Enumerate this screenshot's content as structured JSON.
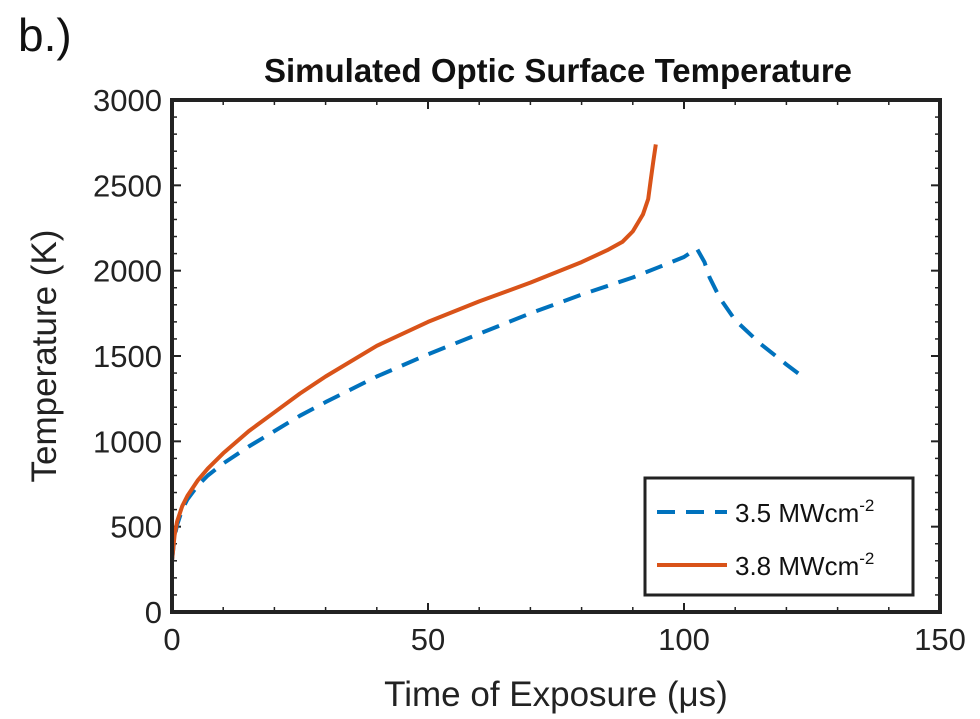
{
  "panel_label": "b.)",
  "chart_data": {
    "type": "line",
    "title": "Simulated Optic Surface Temperature",
    "xlabel": "Time of Exposure (μs)",
    "ylabel": "Temperature (K)",
    "xlim": [
      0,
      150
    ],
    "ylim": [
      0,
      3000
    ],
    "xticks": [
      0,
      50,
      100,
      150
    ],
    "yticks": [
      0,
      500,
      1000,
      1500,
      2000,
      2500,
      3000
    ],
    "grid": false,
    "legend_position": "bottom-right",
    "series": [
      {
        "name": "3.5 MWcm",
        "name_sup": "-2",
        "color": "#0072BD",
        "style": "dashed",
        "x": [
          0,
          0.5,
          1,
          2,
          3,
          5,
          7,
          10,
          15,
          20,
          25,
          30,
          40,
          50,
          60,
          70,
          80,
          90,
          95,
          100,
          102.5,
          104,
          105,
          107,
          110,
          115,
          120,
          124
        ],
        "y": [
          300,
          440,
          510,
          600,
          660,
          740,
          800,
          870,
          970,
          1060,
          1150,
          1230,
          1380,
          1510,
          1630,
          1750,
          1860,
          1960,
          2020,
          2080,
          2130,
          2050,
          1960,
          1840,
          1710,
          1570,
          1450,
          1360
        ]
      },
      {
        "name": "3.8 MWcm",
        "name_sup": "-2",
        "color": "#D95319",
        "style": "solid",
        "x": [
          0,
          0.5,
          1,
          2,
          3,
          5,
          7,
          10,
          15,
          20,
          25,
          30,
          40,
          50,
          60,
          70,
          80,
          85,
          88,
          90,
          91,
          92,
          93,
          93.5,
          94,
          94.5
        ],
        "y": [
          300,
          450,
          530,
          620,
          680,
          770,
          840,
          930,
          1060,
          1170,
          1280,
          1380,
          1560,
          1700,
          1820,
          1930,
          2050,
          2120,
          2170,
          2230,
          2280,
          2330,
          2420,
          2530,
          2640,
          2740
        ]
      }
    ]
  }
}
